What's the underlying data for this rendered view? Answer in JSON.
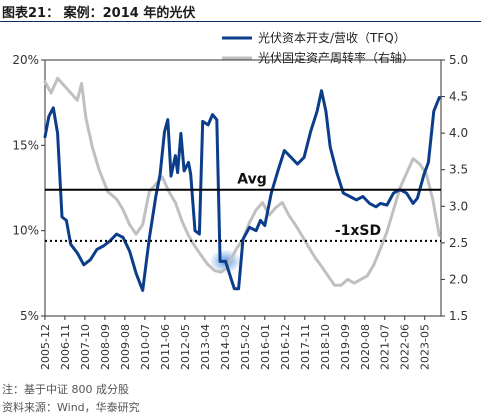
{
  "header": {
    "title": "图表21：  案例：2014 年的光伏"
  },
  "footer": {
    "note": "注：基于中证 800 成分股",
    "source": "资料来源：Wind，华泰研究"
  },
  "chart_data": {
    "type": "line",
    "y_left": {
      "min": 5,
      "max": 20,
      "ticks": [
        "20%",
        "15%",
        "10%",
        "5%"
      ]
    },
    "y_right": {
      "min": 1.5,
      "max": 5.0,
      "ticks": [
        "5.0",
        "4.5",
        "4.0",
        "3.5",
        "3.0",
        "2.5",
        "2.0",
        "1.5"
      ]
    },
    "x_ticks": [
      "2005-12",
      "2006-11",
      "2007-10",
      "2008-09",
      "2009-08",
      "2010-07",
      "2011-06",
      "2012-05",
      "2013-04",
      "2014-03",
      "2015-02",
      "2016-01",
      "2016-12",
      "2017-11",
      "2018-10",
      "2019-09",
      "2020-08",
      "2021-07",
      "2022-06",
      "2023-05"
    ],
    "series": [
      {
        "name": "光伏资本开支/营收（TFQ）",
        "axis": "left",
        "color": "#0c3d8a",
        "points": [
          [
            2005.92,
            15.5
          ],
          [
            2006.1,
            16.7
          ],
          [
            2006.3,
            17.2
          ],
          [
            2006.5,
            15.7
          ],
          [
            2006.7,
            10.8
          ],
          [
            2006.9,
            10.6
          ],
          [
            2007.1,
            9.2
          ],
          [
            2007.4,
            8.7
          ],
          [
            2007.7,
            8.0
          ],
          [
            2008.0,
            8.3
          ],
          [
            2008.3,
            8.9
          ],
          [
            2008.6,
            9.1
          ],
          [
            2008.9,
            9.4
          ],
          [
            2009.2,
            9.8
          ],
          [
            2009.5,
            9.6
          ],
          [
            2009.8,
            8.8
          ],
          [
            2010.1,
            7.5
          ],
          [
            2010.4,
            6.5
          ],
          [
            2010.7,
            9.5
          ],
          [
            2011.0,
            12.0
          ],
          [
            2011.2,
            13.3
          ],
          [
            2011.4,
            15.8
          ],
          [
            2011.55,
            16.5
          ],
          [
            2011.7,
            13.2
          ],
          [
            2011.9,
            14.4
          ],
          [
            2012.0,
            13.4
          ],
          [
            2012.15,
            15.7
          ],
          [
            2012.3,
            13.5
          ],
          [
            2012.5,
            14.0
          ],
          [
            2012.6,
            13.3
          ],
          [
            2012.8,
            10.0
          ],
          [
            2013.0,
            9.8
          ],
          [
            2013.15,
            16.4
          ],
          [
            2013.4,
            16.2
          ],
          [
            2013.6,
            16.8
          ],
          [
            2013.8,
            16.5
          ],
          [
            2013.95,
            8.2
          ],
          [
            2014.2,
            8.2
          ],
          [
            2014.45,
            7.2
          ],
          [
            2014.6,
            6.6
          ],
          [
            2014.8,
            6.6
          ],
          [
            2015.0,
            9.5
          ],
          [
            2015.3,
            10.2
          ],
          [
            2015.6,
            10.0
          ],
          [
            2015.8,
            10.6
          ],
          [
            2016.0,
            10.3
          ],
          [
            2016.3,
            12.2
          ],
          [
            2016.6,
            13.5
          ],
          [
            2016.9,
            14.7
          ],
          [
            2017.2,
            14.3
          ],
          [
            2017.5,
            13.9
          ],
          [
            2017.8,
            14.3
          ],
          [
            2018.1,
            15.8
          ],
          [
            2018.4,
            17.0
          ],
          [
            2018.6,
            18.2
          ],
          [
            2018.8,
            17.0
          ],
          [
            2019.0,
            14.9
          ],
          [
            2019.3,
            13.4
          ],
          [
            2019.6,
            12.2
          ],
          [
            2019.9,
            12.0
          ],
          [
            2020.2,
            11.8
          ],
          [
            2020.5,
            12.0
          ],
          [
            2020.8,
            11.6
          ],
          [
            2021.1,
            11.4
          ],
          [
            2021.3,
            11.6
          ],
          [
            2021.6,
            11.5
          ],
          [
            2021.9,
            12.2
          ],
          [
            2022.2,
            12.4
          ],
          [
            2022.5,
            12.2
          ],
          [
            2022.8,
            11.6
          ],
          [
            2023.0,
            11.9
          ],
          [
            2023.3,
            13.3
          ],
          [
            2023.5,
            14.0
          ],
          [
            2023.75,
            17.0
          ],
          [
            2024.0,
            17.8
          ]
        ]
      },
      {
        "name": "光伏固定资产周转率（右轴）",
        "axis": "right",
        "color": "#c0c0c0",
        "points": [
          [
            2005.92,
            4.7
          ],
          [
            2006.2,
            4.55
          ],
          [
            2006.5,
            4.75
          ],
          [
            2006.8,
            4.65
          ],
          [
            2007.1,
            4.55
          ],
          [
            2007.4,
            4.45
          ],
          [
            2007.6,
            4.68
          ],
          [
            2007.8,
            4.2
          ],
          [
            2008.1,
            3.8
          ],
          [
            2008.4,
            3.5
          ],
          [
            2008.8,
            3.2
          ],
          [
            2009.2,
            3.1
          ],
          [
            2009.5,
            2.95
          ],
          [
            2009.8,
            2.75
          ],
          [
            2010.1,
            2.62
          ],
          [
            2010.4,
            2.75
          ],
          [
            2010.7,
            3.2
          ],
          [
            2011.0,
            3.3
          ],
          [
            2011.3,
            3.4
          ],
          [
            2011.6,
            3.2
          ],
          [
            2011.9,
            3.05
          ],
          [
            2012.2,
            2.8
          ],
          [
            2012.5,
            2.6
          ],
          [
            2012.8,
            2.45
          ],
          [
            2013.1,
            2.32
          ],
          [
            2013.4,
            2.2
          ],
          [
            2013.7,
            2.12
          ],
          [
            2014.0,
            2.1
          ],
          [
            2014.2,
            2.15
          ],
          [
            2014.4,
            2.25
          ],
          [
            2014.7,
            2.42
          ],
          [
            2015.0,
            2.55
          ],
          [
            2015.3,
            2.78
          ],
          [
            2015.6,
            2.95
          ],
          [
            2015.9,
            3.05
          ],
          [
            2016.2,
            2.88
          ],
          [
            2016.5,
            2.98
          ],
          [
            2016.8,
            3.05
          ],
          [
            2017.1,
            2.88
          ],
          [
            2017.4,
            2.75
          ],
          [
            2017.7,
            2.6
          ],
          [
            2018.0,
            2.45
          ],
          [
            2018.3,
            2.3
          ],
          [
            2018.6,
            2.18
          ],
          [
            2018.9,
            2.05
          ],
          [
            2019.2,
            1.92
          ],
          [
            2019.5,
            1.92
          ],
          [
            2019.8,
            2.0
          ],
          [
            2020.1,
            1.95
          ],
          [
            2020.4,
            2.0
          ],
          [
            2020.7,
            2.05
          ],
          [
            2021.0,
            2.2
          ],
          [
            2021.3,
            2.42
          ],
          [
            2021.6,
            2.65
          ],
          [
            2021.9,
            2.95
          ],
          [
            2022.2,
            3.25
          ],
          [
            2022.5,
            3.45
          ],
          [
            2022.8,
            3.65
          ],
          [
            2023.1,
            3.58
          ],
          [
            2023.4,
            3.45
          ],
          [
            2023.7,
            3.1
          ],
          [
            2024.0,
            2.6
          ]
        ]
      }
    ],
    "reference_lines": [
      {
        "name": "Avg",
        "axis": "left",
        "value": 12.4,
        "style": "solid"
      },
      {
        "name": "-1xSD",
        "axis": "left",
        "value": 9.4,
        "style": "dotted"
      }
    ],
    "highlight": {
      "x": 2014.2,
      "y": 8.2,
      "axis": "left"
    },
    "legend_position": "top-right"
  }
}
